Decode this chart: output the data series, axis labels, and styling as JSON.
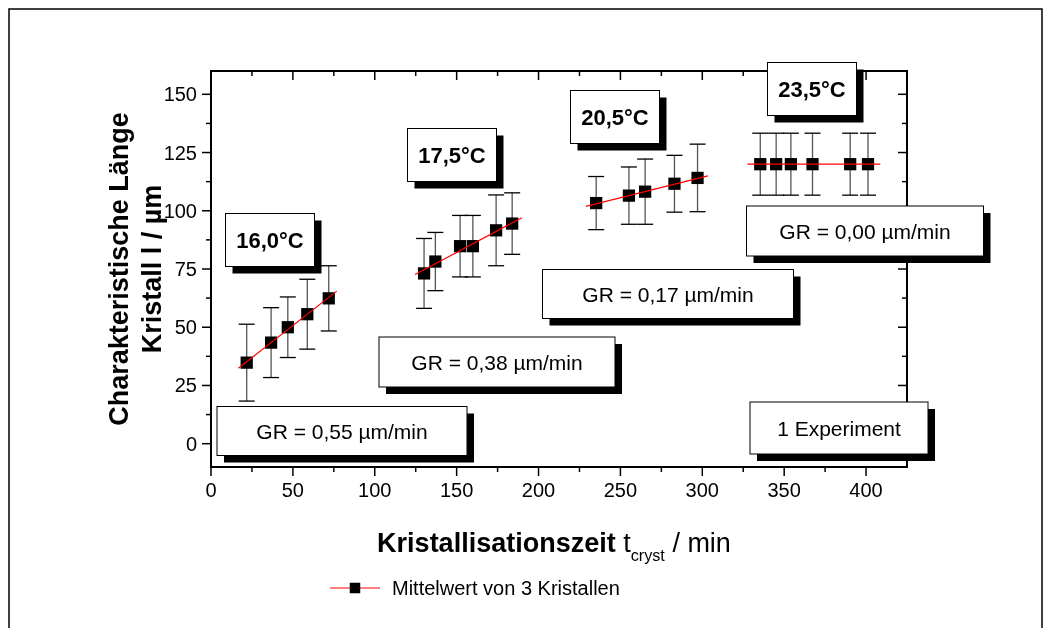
{
  "chart_data": {
    "type": "scatter",
    "xlabel": "Kristallisationszeit t$_{cryst}$ / min",
    "ylabel": "Charakteristische Länge\nKristall l / µm",
    "xlim": [
      0,
      425
    ],
    "ylim": [
      -10,
      160
    ],
    "xticks": [
      0,
      {
        "value": 25,
        "label": null
      },
      50,
      {
        "value": 75,
        "label": null
      },
      100,
      {
        "value": 125,
        "label": null
      },
      150,
      {
        "value": 175,
        "label": null
      },
      200,
      {
        "value": 225,
        "label": null
      },
      250,
      {
        "value": 275,
        "label": null
      },
      300,
      {
        "value": 325,
        "label": null
      },
      350,
      {
        "value": 375,
        "label": null
      },
      400
    ],
    "yticks": [
      0,
      {
        "value": 12.5,
        "label": null
      },
      25,
      {
        "value": 37.5,
        "label": null
      },
      50,
      {
        "value": 62.5,
        "label": null
      },
      75,
      {
        "value": 87.5,
        "label": null
      },
      100,
      {
        "value": 112.5,
        "label": null
      },
      125,
      {
        "value": 137.5,
        "label": null
      },
      150
    ],
    "legend": "bottom",
    "grid": false,
    "series": [
      {
        "name": "Mittelwert von 3 Kristallen",
        "marker": "square",
        "color": "#000000",
        "x": [
          21.8,
          36.7,
          46.9,
          58.8,
          71.9,
          130.1,
          137,
          152.1,
          159.9,
          174.1,
          183.9,
          235.2,
          255.2,
          265.1,
          283,
          297.1,
          335.4,
          345.1,
          354.1,
          367.3,
          390.3,
          401.2
        ],
        "values": [
          34.8,
          43.4,
          50,
          55.6,
          62.4,
          73.1,
          78.2,
          84.8,
          84.8,
          91.6,
          94.5,
          103.3,
          106.5,
          108.2,
          111.6,
          114.1,
          120,
          120,
          120,
          120,
          120,
          120
        ],
        "errors": [
          16.5,
          15,
          13,
          15,
          14,
          15,
          12.5,
          13.2,
          13.2,
          15.2,
          13.2,
          11.4,
          12.3,
          14,
          12.2,
          14.5,
          13.3,
          13.3,
          13.3,
          13.3,
          13.3,
          13.3
        ]
      },
      {
        "type": "line",
        "color": "#ff0000",
        "x": [
          16.7,
          76.8
        ],
        "values": [
          32.4,
          65.5
        ]
      },
      {
        "type": "line",
        "color": "#ff0000",
        "x": [
          124.6,
          189.8
        ],
        "values": [
          72.6,
          97
        ]
      },
      {
        "type": "line",
        "color": "#ff0000",
        "x": [
          228.9,
          303.4
        ],
        "values": [
          101.9,
          115
        ]
      },
      {
        "type": "line",
        "color": "#ff0000",
        "x": [
          327.6,
          408.7
        ],
        "values": [
          120,
          120
        ]
      }
    ],
    "annotations": [
      "16,0°C",
      "17,5°C",
      "20,5°C",
      "23,5°C",
      "GR = 0,55 µm/min",
      "GR = 0,38 µm/min",
      "GR = 0,17 µm/min",
      "GR = 0,00 µm/min",
      "1 Experiment"
    ]
  }
}
